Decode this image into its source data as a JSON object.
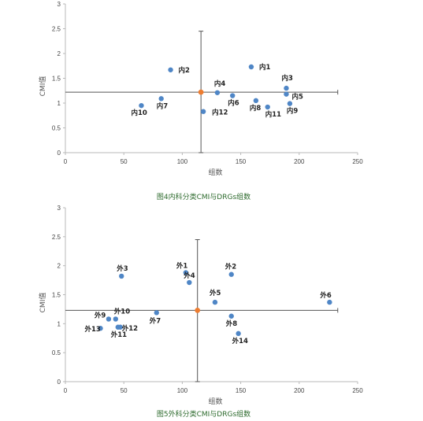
{
  "chart_data": [
    {
      "type": "scatter",
      "title": "",
      "caption": "图4内科分类CMI与DRGs组数",
      "xlabel": "组数",
      "ylabel": "CMI值",
      "xlim": [
        0,
        250
      ],
      "ylim": [
        0,
        3
      ],
      "xticks": [
        0,
        50,
        100,
        150,
        200,
        250
      ],
      "yticks": [
        0,
        0.5,
        1,
        1.5,
        2,
        2.5,
        3
      ],
      "grid": false,
      "colors": {
        "points": "#4f86c6",
        "reference": "#ed7d31",
        "crosshair": "#555555"
      },
      "reference": {
        "x": 116,
        "y": 1.22
      },
      "crosshair": {
        "x_range": [
          0,
          233
        ],
        "y_range": [
          0,
          2.45
        ]
      },
      "points": [
        {
          "label": "内1",
          "x": 159,
          "y": 1.73
        },
        {
          "label": "内2",
          "x": 90,
          "y": 1.67
        },
        {
          "label": "内3",
          "x": 189,
          "y": 1.3
        },
        {
          "label": "内4",
          "x": 130,
          "y": 1.21
        },
        {
          "label": "内5",
          "x": 189,
          "y": 1.18
        },
        {
          "label": "内6",
          "x": 143,
          "y": 1.15
        },
        {
          "label": "内7",
          "x": 82,
          "y": 1.09
        },
        {
          "label": "内8",
          "x": 163,
          "y": 1.05
        },
        {
          "label": "内9",
          "x": 192,
          "y": 0.99
        },
        {
          "label": "内10",
          "x": 65,
          "y": 0.95
        },
        {
          "label": "内11",
          "x": 173,
          "y": 0.92
        },
        {
          "label": "内12",
          "x": 118,
          "y": 0.83
        }
      ]
    },
    {
      "type": "scatter",
      "title": "",
      "caption": "图5外科分类CMI与DRGs组数",
      "xlabel": "组数",
      "ylabel": "CMI值",
      "xlim": [
        0,
        250
      ],
      "ylim": [
        0,
        3
      ],
      "xticks": [
        0,
        50,
        100,
        150,
        200,
        250
      ],
      "yticks": [
        0,
        0.5,
        1,
        1.5,
        2,
        2.5,
        3
      ],
      "grid": false,
      "colors": {
        "points": "#4f86c6",
        "reference": "#ed7d31",
        "crosshair": "#555555"
      },
      "reference": {
        "x": 113,
        "y": 1.23
      },
      "crosshair": {
        "x_range": [
          0,
          233
        ],
        "y_range": [
          0,
          2.45
        ]
      },
      "points": [
        {
          "label": "外1",
          "x": 103,
          "y": 1.88
        },
        {
          "label": "外2",
          "x": 142,
          "y": 1.85
        },
        {
          "label": "外3",
          "x": 48,
          "y": 1.82
        },
        {
          "label": "外4",
          "x": 106,
          "y": 1.71
        },
        {
          "label": "外5",
          "x": 128,
          "y": 1.37
        },
        {
          "label": "外6",
          "x": 226,
          "y": 1.37
        },
        {
          "label": "外7",
          "x": 78,
          "y": 1.19
        },
        {
          "label": "外8",
          "x": 142,
          "y": 1.13
        },
        {
          "label": "外9",
          "x": 37,
          "y": 1.08
        },
        {
          "label": "外10",
          "x": 43,
          "y": 1.08
        },
        {
          "label": "外11",
          "x": 45,
          "y": 0.94
        },
        {
          "label": "外12",
          "x": 47,
          "y": 0.94
        },
        {
          "label": "外13",
          "x": 30,
          "y": 0.92
        },
        {
          "label": "外14",
          "x": 148,
          "y": 0.83
        }
      ]
    }
  ]
}
